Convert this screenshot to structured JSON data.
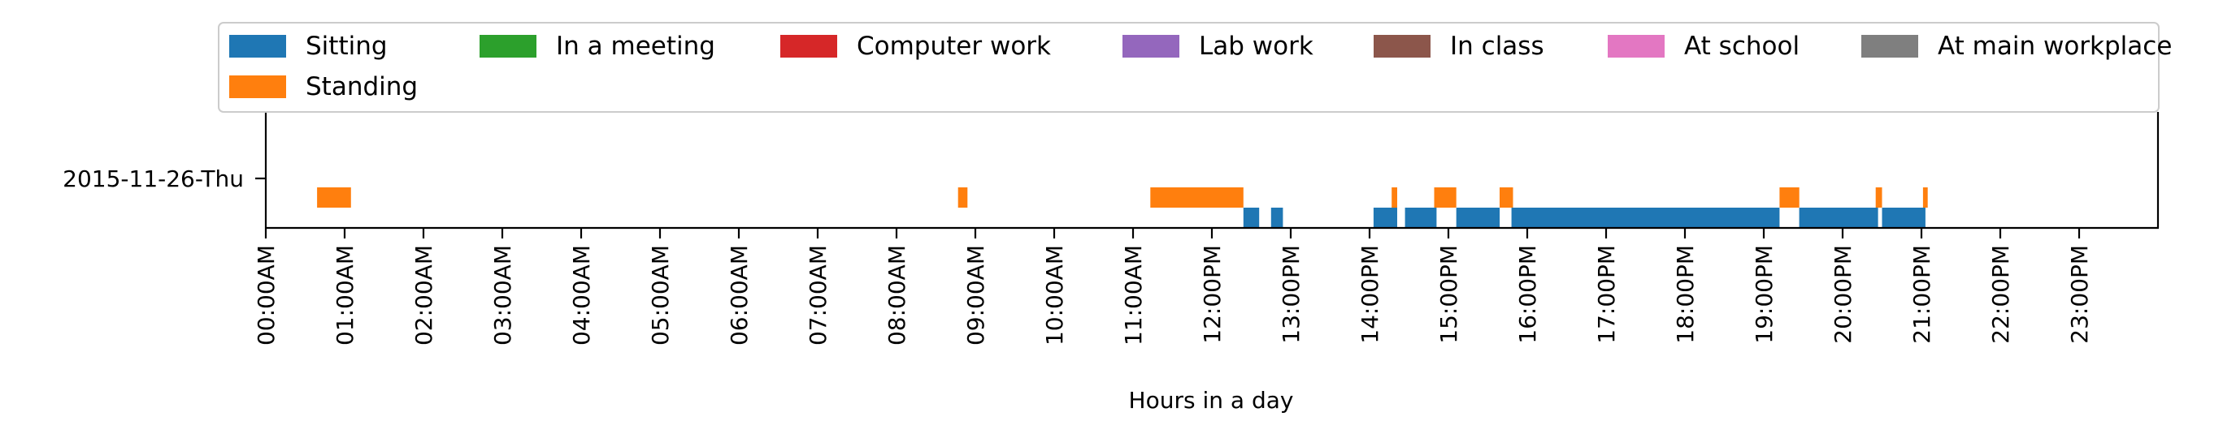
{
  "chart_data": {
    "type": "timeline",
    "ylabel_row": "2015-11-26-Thu",
    "xlabel": "Hours in a day",
    "xlim": [
      0,
      24
    ],
    "xticks": [
      {
        "value": 0,
        "label": "00:00AM"
      },
      {
        "value": 1,
        "label": "01:00AM"
      },
      {
        "value": 2,
        "label": "02:00AM"
      },
      {
        "value": 3,
        "label": "03:00AM"
      },
      {
        "value": 4,
        "label": "04:00AM"
      },
      {
        "value": 5,
        "label": "05:00AM"
      },
      {
        "value": 6,
        "label": "06:00AM"
      },
      {
        "value": 7,
        "label": "07:00AM"
      },
      {
        "value": 8,
        "label": "08:00AM"
      },
      {
        "value": 9,
        "label": "09:00AM"
      },
      {
        "value": 10,
        "label": "10:00AM"
      },
      {
        "value": 11,
        "label": "11:00AM"
      },
      {
        "value": 12,
        "label": "12:00PM"
      },
      {
        "value": 13,
        "label": "13:00PM"
      },
      {
        "value": 14,
        "label": "14:00PM"
      },
      {
        "value": 15,
        "label": "15:00PM"
      },
      {
        "value": 16,
        "label": "16:00PM"
      },
      {
        "value": 17,
        "label": "17:00PM"
      },
      {
        "value": 18,
        "label": "18:00PM"
      },
      {
        "value": 19,
        "label": "19:00PM"
      },
      {
        "value": 20,
        "label": "20:00PM"
      },
      {
        "value": 21,
        "label": "21:00PM"
      },
      {
        "value": 22,
        "label": "22:00PM"
      },
      {
        "value": 23,
        "label": "23:00PM"
      }
    ],
    "legend_position": "top",
    "series": [
      {
        "name": "Sitting",
        "color": "#1f77b4",
        "lane": 0,
        "intervals": [
          [
            12.4,
            12.6
          ],
          [
            12.75,
            12.9
          ],
          [
            14.05,
            14.35
          ],
          [
            14.45,
            14.85
          ],
          [
            15.1,
            15.65
          ],
          [
            15.8,
            19.2
          ],
          [
            19.45,
            20.45
          ],
          [
            20.5,
            21.05
          ]
        ]
      },
      {
        "name": "Standing",
        "color": "#ff7f0e",
        "lane": 1,
        "intervals": [
          [
            0.65,
            1.08
          ],
          [
            8.78,
            8.9
          ],
          [
            11.22,
            12.4
          ],
          [
            14.28,
            14.35
          ],
          [
            14.82,
            15.1
          ],
          [
            15.65,
            15.82
          ],
          [
            19.2,
            19.45
          ],
          [
            20.42,
            20.5
          ],
          [
            21.02,
            21.08
          ]
        ]
      },
      {
        "name": "In a meeting",
        "color": "#2ca02c",
        "lane": 2,
        "intervals": []
      },
      {
        "name": "Computer work",
        "color": "#d62728",
        "lane": 3,
        "intervals": []
      },
      {
        "name": "Lab work",
        "color": "#9467bd",
        "lane": 4,
        "intervals": []
      },
      {
        "name": "In class",
        "color": "#8c564b",
        "lane": 5,
        "intervals": []
      },
      {
        "name": "At school",
        "color": "#e377c2",
        "lane": 6,
        "intervals": []
      },
      {
        "name": "At main workplace",
        "color": "#7f7f7f",
        "lane": 7,
        "intervals": []
      }
    ]
  }
}
